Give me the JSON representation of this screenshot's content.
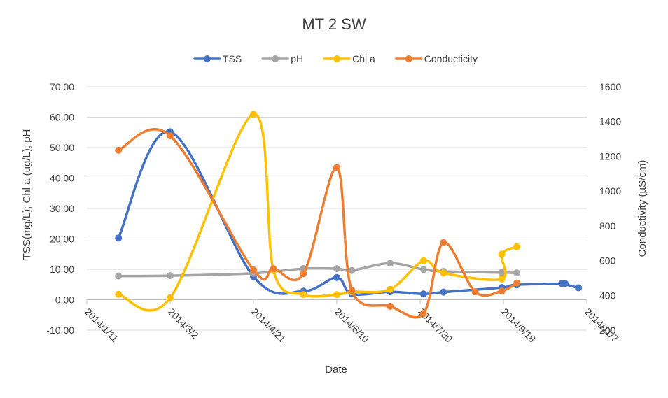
{
  "chart_data": {
    "type": "line",
    "title": "MT 2 SW",
    "xlabel": "Date",
    "ylabel": "TSS(mg/L); Chl a (ug/L); pH",
    "y2label": "Conductivity  (µS/cm)",
    "x_tick_labels": [
      "2014/1/11",
      "2014/3/2",
      "2014/4/21",
      "2014/6/10",
      "2014/7/30",
      "2014/9/18",
      "2014/11/7"
    ],
    "y_tick_labels": [
      "70.00",
      "60.00",
      "50.00",
      "40.00",
      "30.00",
      "20.00",
      "10.00",
      "0.00",
      "-10.00"
    ],
    "y2_tick_labels": [
      "1600",
      "1400",
      "1200",
      "1000",
      "800",
      "600",
      "400",
      "200"
    ],
    "xlim": [
      "2014-01-11",
      "2014-11-07"
    ],
    "ylim": [
      -10,
      70
    ],
    "y2lim": [
      200,
      1600
    ],
    "grid": "horizontal",
    "legend": "top",
    "series": [
      {
        "name": "TSS",
        "axis": "left",
        "color": "#4472c4",
        "points": [
          {
            "x": "2014-01-30",
            "y": 20.3
          },
          {
            "x": "2014-03-02",
            "y": 55.2
          },
          {
            "x": "2014-04-21",
            "y": 7.6
          },
          {
            "x": "2014-05-21",
            "y": 2.8
          },
          {
            "x": "2014-06-10",
            "y": 7.3
          },
          {
            "x": "2014-06-19",
            "y": 1.9
          },
          {
            "x": "2014-07-12",
            "y": 2.6
          },
          {
            "x": "2014-08-01",
            "y": 1.9
          },
          {
            "x": "2014-08-13",
            "y": 2.5
          },
          {
            "x": "2014-09-17",
            "y": 4.0
          },
          {
            "x": "2014-09-26",
            "y": 4.9
          },
          {
            "x": "2014-10-25",
            "y": 5.3
          },
          {
            "x": "2014-10-23",
            "y": 5.3
          },
          {
            "x": "2014-11-02",
            "y": 3.9
          }
        ]
      },
      {
        "name": "pH",
        "axis": "left",
        "color": "#a5a5a5",
        "points": [
          {
            "x": "2014-01-30",
            "y": 7.8
          },
          {
            "x": "2014-03-02",
            "y": 7.9
          },
          {
            "x": "2014-04-21",
            "y": 8.7
          },
          {
            "x": "2014-05-21",
            "y": 10.2
          },
          {
            "x": "2014-06-10",
            "y": 10.2
          },
          {
            "x": "2014-06-19",
            "y": 9.6
          },
          {
            "x": "2014-07-12",
            "y": 12.0
          },
          {
            "x": "2014-08-01",
            "y": 9.9
          },
          {
            "x": "2014-08-13",
            "y": 9.3
          },
          {
            "x": "2014-09-17",
            "y": 8.9
          },
          {
            "x": "2014-09-26",
            "y": 8.8
          }
        ]
      },
      {
        "name": "Chl a",
        "axis": "left",
        "color": "#ffc000",
        "points": [
          {
            "x": "2014-01-30",
            "y": 1.8
          },
          {
            "x": "2014-03-02",
            "y": 0.6
          },
          {
            "x": "2014-04-21",
            "y": 61.0
          },
          {
            "x": "2014-05-03",
            "y": 9.6
          },
          {
            "x": "2014-05-21",
            "y": 1.7
          },
          {
            "x": "2014-06-10",
            "y": 1.7
          },
          {
            "x": "2014-06-19",
            "y": 2.6
          },
          {
            "x": "2014-07-12",
            "y": 3.4
          },
          {
            "x": "2014-08-01",
            "y": 12.8
          },
          {
            "x": "2014-08-13",
            "y": 8.8
          },
          {
            "x": "2014-09-17",
            "y": 6.8
          },
          {
            "x": "2014-09-17",
            "y": 15.0
          },
          {
            "x": "2014-09-26",
            "y": 17.4
          }
        ]
      },
      {
        "name": "Conducticity",
        "axis": "right",
        "color": "#ed7d31",
        "points": [
          {
            "x": "2014-01-30",
            "y": 1235
          },
          {
            "x": "2014-03-02",
            "y": 1318
          },
          {
            "x": "2014-04-21",
            "y": 546
          },
          {
            "x": "2014-05-03",
            "y": 553
          },
          {
            "x": "2014-05-21",
            "y": 525
          },
          {
            "x": "2014-06-10",
            "y": 1135
          },
          {
            "x": "2014-06-19",
            "y": 429
          },
          {
            "x": "2014-07-12",
            "y": 337
          },
          {
            "x": "2014-08-01",
            "y": 296
          },
          {
            "x": "2014-08-13",
            "y": 704
          },
          {
            "x": "2014-09-01",
            "y": 420
          },
          {
            "x": "2014-09-17",
            "y": 425
          },
          {
            "x": "2014-09-26",
            "y": 471
          }
        ]
      }
    ]
  }
}
